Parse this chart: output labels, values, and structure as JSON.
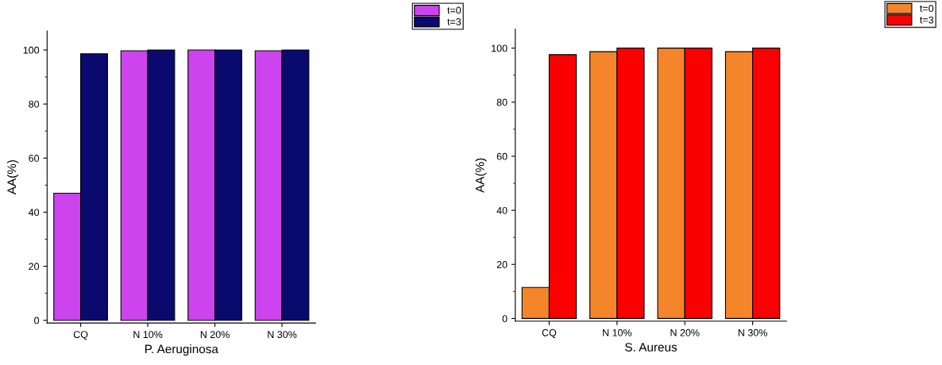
{
  "chart_data": [
    {
      "type": "bar",
      "xlabel": "P. Aeruginosa",
      "ylabel": "AA(%)",
      "categories": [
        "CQ",
        "N 10%",
        "N 20%",
        "N 30%"
      ],
      "series": [
        {
          "name": "t=0",
          "color": "#cc44ee",
          "values": [
            47,
            99.7,
            100,
            99.7
          ]
        },
        {
          "name": "t=3",
          "color": "#0a0a6e",
          "values": [
            98.6,
            100,
            100,
            100
          ]
        }
      ],
      "ylim": [
        -1,
        107
      ],
      "yticks": [
        0,
        20,
        40,
        60,
        80,
        100
      ],
      "grid": false,
      "legend": "top right"
    },
    {
      "type": "bar",
      "xlabel": "S. Aureus",
      "ylabel": "AA(%)",
      "categories": [
        "CQ",
        "N 10%",
        "N 20%",
        "N 30%"
      ],
      "series": [
        {
          "name": "t=0",
          "color": "#f5852a",
          "values": [
            11.5,
            98.7,
            100,
            98.7
          ]
        },
        {
          "name": "t=3",
          "color": "#fa0000",
          "values": [
            97.6,
            100,
            100,
            100
          ]
        }
      ],
      "ylim": [
        -1,
        107
      ],
      "yticks": [
        0,
        20,
        40,
        60,
        80,
        100
      ],
      "grid": false,
      "legend": "top right"
    }
  ]
}
